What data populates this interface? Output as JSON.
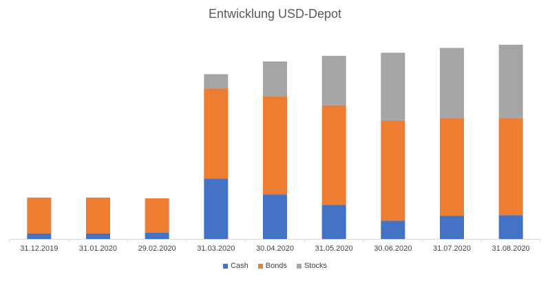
{
  "chart_data": {
    "type": "bar",
    "stacked": true,
    "title": "Entwicklung USD-Depot",
    "xlabel": "",
    "ylabel": "",
    "categories": [
      "31.12.2019",
      "31.01.2020",
      "29.02.2020",
      "31.03.2020",
      "30.04.2020",
      "31.05.2020",
      "30.06.2020",
      "31.07.2020",
      "31.08.2020"
    ],
    "series": [
      {
        "name": "Cash",
        "color": "#4472c4",
        "values": [
          7,
          7,
          8,
          76,
          56,
          43,
          23,
          29,
          30
        ]
      },
      {
        "name": "Bonds",
        "color": "#ed7d31",
        "values": [
          45,
          45,
          43,
          113,
          123,
          125,
          126,
          123,
          122
        ]
      },
      {
        "name": "Stocks",
        "color": "#a5a5a5",
        "values": [
          0,
          0,
          0,
          18,
          44,
          62,
          85,
          88,
          92
        ]
      }
    ],
    "ylim": [
      0,
      250
    ],
    "grid": false,
    "y_axis_visible": false,
    "legend_position": "bottom"
  }
}
